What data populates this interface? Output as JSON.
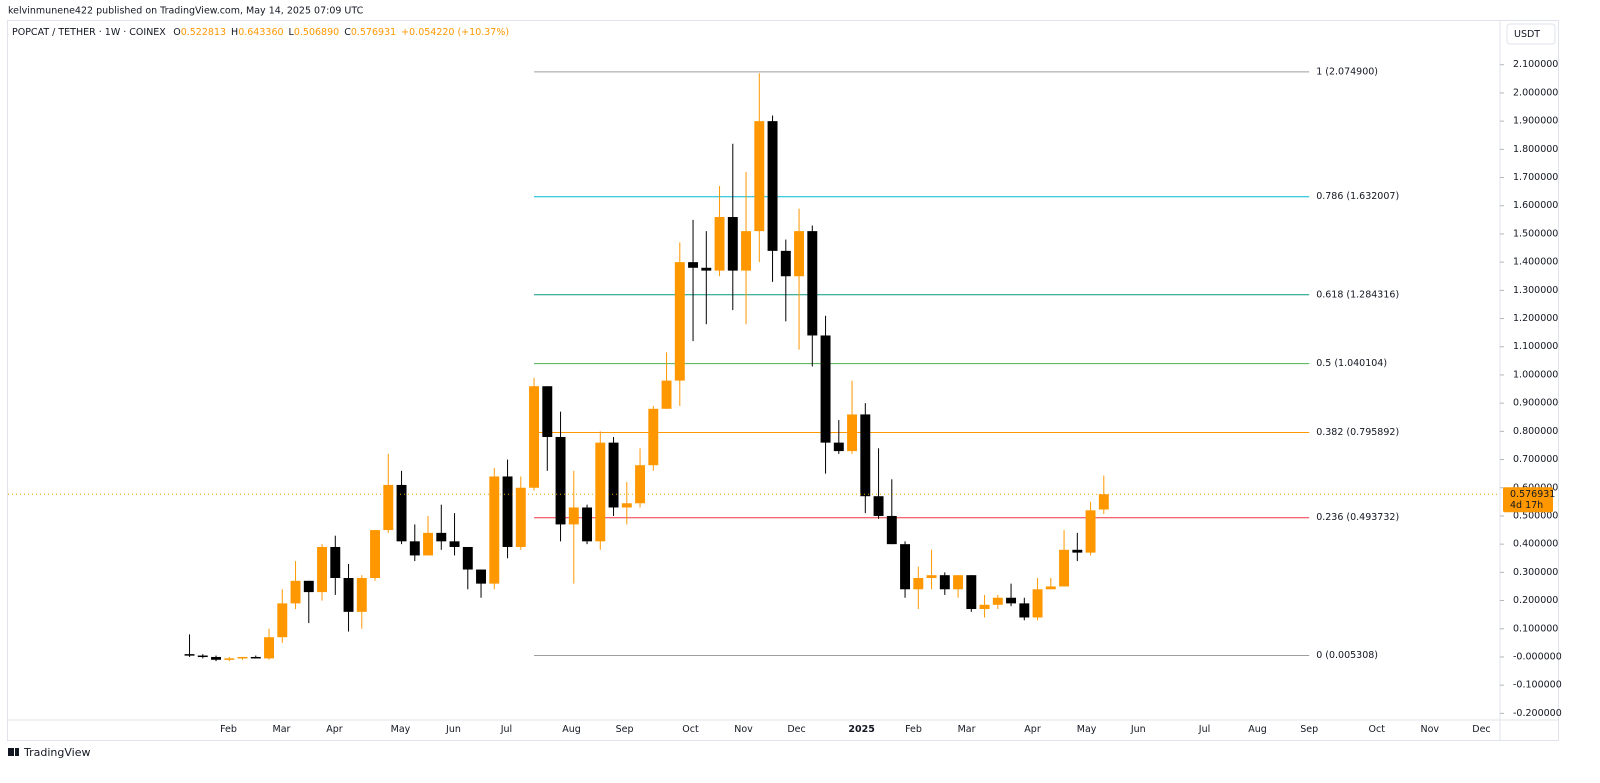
{
  "header": {
    "publisher": "kelvinmunene422 published on TradingView.com, May 14, 2025 07:09 UTC",
    "logo": "TradingView"
  },
  "chart_data": {
    "type": "candlestick",
    "title": "POPCAT / TETHER · 1W · COINEX",
    "ohlc_legend": [
      {
        "key": "O",
        "text": "0.522813"
      },
      {
        "key": "H",
        "text": "0.643360"
      },
      {
        "key": "L",
        "text": "0.506890"
      },
      {
        "key": "C",
        "text": "0.576931"
      }
    ],
    "change": "+0.054220 (+10.37%)",
    "currency": "USDT",
    "up_color": "#ff9800",
    "down_color": "#000000",
    "x": [
      0,
      1,
      2,
      3,
      4,
      5,
      6,
      7,
      8,
      9,
      10,
      11,
      12,
      13,
      14,
      15,
      16,
      17,
      18,
      19,
      20,
      21,
      22,
      23,
      24,
      25,
      26,
      27,
      28,
      29,
      30,
      31,
      32,
      33,
      34,
      35,
      36,
      37,
      38,
      39,
      40,
      41,
      42,
      43,
      44,
      45,
      46,
      47,
      48,
      49,
      50,
      51,
      52,
      53,
      54,
      55,
      56,
      57,
      58,
      59,
      60,
      61,
      62,
      63,
      64,
      65,
      66,
      67,
      68,
      69
    ],
    "open": [
      0.01,
      0.005,
      0.0,
      -0.01,
      -0.005,
      0.0,
      -0.005,
      0.07,
      0.19,
      0.27,
      0.23,
      0.39,
      0.28,
      0.16,
      0.28,
      0.45,
      0.61,
      0.41,
      0.36,
      0.44,
      0.41,
      0.39,
      0.31,
      0.26,
      0.64,
      0.39,
      0.6,
      0.96,
      0.78,
      0.47,
      0.53,
      0.41,
      0.76,
      0.53,
      0.545,
      0.68,
      0.88,
      0.98,
      1.4,
      1.38,
      1.37,
      1.56,
      1.37,
      1.51,
      1.9,
      1.44,
      1.35,
      1.51,
      1.14,
      0.76,
      0.73,
      0.86,
      0.57,
      0.5,
      0.4,
      0.24,
      0.28,
      0.29,
      0.24,
      0.29,
      0.17,
      0.185,
      0.21,
      0.19,
      0.14,
      0.24,
      0.25,
      0.38,
      0.37,
      0.522813
    ],
    "high": [
      0.08,
      0.01,
      0.005,
      0.0,
      0.0,
      0.005,
      0.1,
      0.24,
      0.34,
      0.27,
      0.4,
      0.43,
      0.33,
      0.29,
      0.45,
      0.72,
      0.66,
      0.47,
      0.5,
      0.54,
      0.51,
      0.39,
      0.31,
      0.67,
      0.7,
      0.64,
      0.99,
      0.96,
      0.87,
      0.66,
      0.54,
      0.8,
      0.78,
      0.62,
      0.74,
      0.89,
      1.08,
      1.47,
      1.55,
      1.51,
      1.67,
      1.82,
      1.72,
      2.07,
      1.92,
      1.48,
      1.59,
      1.53,
      1.21,
      0.84,
      0.98,
      0.9,
      0.74,
      0.63,
      0.41,
      0.32,
      0.38,
      0.3,
      0.29,
      0.29,
      0.22,
      0.22,
      0.26,
      0.21,
      0.28,
      0.28,
      0.45,
      0.44,
      0.55,
      0.64336
    ],
    "low": [
      0.0,
      -0.005,
      -0.015,
      -0.015,
      -0.01,
      -0.005,
      -0.01,
      0.05,
      0.17,
      0.12,
      0.2,
      0.22,
      0.09,
      0.1,
      0.27,
      0.44,
      0.4,
      0.34,
      0.36,
      0.38,
      0.36,
      0.24,
      0.21,
      0.24,
      0.35,
      0.38,
      0.59,
      0.66,
      0.41,
      0.26,
      0.4,
      0.38,
      0.5,
      0.47,
      0.53,
      0.66,
      0.88,
      0.89,
      1.12,
      1.18,
      1.35,
      1.23,
      1.18,
      1.4,
      1.33,
      1.19,
      1.09,
      1.03,
      0.65,
      0.72,
      0.72,
      0.51,
      0.49,
      0.4,
      0.21,
      0.17,
      0.24,
      0.22,
      0.21,
      0.16,
      0.14,
      0.17,
      0.18,
      0.13,
      0.13,
      0.24,
      0.25,
      0.34,
      0.36,
      0.50689
    ],
    "close": [
      0.005,
      0.0,
      -0.01,
      -0.005,
      0.0,
      -0.005,
      0.07,
      0.19,
      0.27,
      0.23,
      0.39,
      0.28,
      0.16,
      0.28,
      0.45,
      0.61,
      0.41,
      0.36,
      0.44,
      0.41,
      0.39,
      0.31,
      0.26,
      0.64,
      0.39,
      0.6,
      0.96,
      0.78,
      0.47,
      0.53,
      0.41,
      0.76,
      0.53,
      0.545,
      0.68,
      0.88,
      0.98,
      1.4,
      1.38,
      1.37,
      1.56,
      1.37,
      1.51,
      1.9,
      1.44,
      1.35,
      1.51,
      1.14,
      0.76,
      0.73,
      0.86,
      0.57,
      0.5,
      0.4,
      0.24,
      0.28,
      0.29,
      0.24,
      0.29,
      0.17,
      0.185,
      0.21,
      0.19,
      0.14,
      0.24,
      0.25,
      0.38,
      0.37,
      0.52,
      0.576931
    ],
    "last_price": {
      "value": 0.576931,
      "label": "0.576931"
    },
    "countdown": "4d 17h",
    "fib_x": [
      26,
      84.5
    ],
    "fib_levels": [
      {
        "value": 2.0749,
        "label": "1 (2.074900)",
        "color": "#9e9e9e"
      },
      {
        "value": 1.632007,
        "label": "0.786 (1.632007)",
        "color": "#00bcd4"
      },
      {
        "value": 1.284316,
        "label": "0.618 (1.284316)",
        "color": "#089981"
      },
      {
        "value": 1.040104,
        "label": "0.5 (1.040104)",
        "color": "#4caf50"
      },
      {
        "value": 0.795892,
        "label": "0.382 (0.795892)",
        "color": "#ff9800"
      },
      {
        "value": 0.493732,
        "label": "0.236 (0.493732)",
        "color": "#f23645"
      },
      {
        "value": 0.005308,
        "label": "0 (0.005308)",
        "color": "#9e9e9e"
      }
    ],
    "xlim": [
      -13.7,
      98.9
    ],
    "ylim": [
      -0.22,
      2.17
    ],
    "xticks": [
      {
        "value": 2.94,
        "label": "Feb"
      },
      {
        "value": 6.94,
        "label": "Mar"
      },
      {
        "value": 10.94,
        "label": "Apr"
      },
      {
        "value": 15.92,
        "label": "May"
      },
      {
        "value": 19.92,
        "label": "Jun"
      },
      {
        "value": 23.92,
        "label": "Jul"
      },
      {
        "value": 28.83,
        "label": "Aug"
      },
      {
        "value": 32.83,
        "label": "Sep"
      },
      {
        "value": 37.81,
        "label": "Oct"
      },
      {
        "value": 41.81,
        "label": "Nov"
      },
      {
        "value": 45.81,
        "label": "Dec"
      },
      {
        "value": 50.72,
        "label": "2025"
      },
      {
        "value": 54.64,
        "label": "Feb"
      },
      {
        "value": 58.64,
        "label": "Mar"
      },
      {
        "value": 63.62,
        "label": "Apr"
      },
      {
        "value": 67.7,
        "label": "May"
      },
      {
        "value": 71.6,
        "label": "Jun"
      },
      {
        "value": 76.6,
        "label": "Jul"
      },
      {
        "value": 80.6,
        "label": "Aug"
      },
      {
        "value": 84.5,
        "label": "Sep"
      },
      {
        "value": 89.6,
        "label": "Oct"
      },
      {
        "value": 93.6,
        "label": "Nov"
      },
      {
        "value": 97.5,
        "label": "Dec"
      }
    ],
    "yticks": [
      {
        "value": 2.1,
        "label": "2.100000"
      },
      {
        "value": 2.0,
        "label": "2.000000"
      },
      {
        "value": 1.9,
        "label": "1.900000"
      },
      {
        "value": 1.8,
        "label": "1.800000"
      },
      {
        "value": 1.7,
        "label": "1.700000"
      },
      {
        "value": 1.6,
        "label": "1.600000"
      },
      {
        "value": 1.5,
        "label": "1.500000"
      },
      {
        "value": 1.4,
        "label": "1.400000"
      },
      {
        "value": 1.3,
        "label": "1.300000"
      },
      {
        "value": 1.2,
        "label": "1.200000"
      },
      {
        "value": 1.1,
        "label": "1.100000"
      },
      {
        "value": 1.0,
        "label": "1.000000"
      },
      {
        "value": 0.9,
        "label": "0.900000"
      },
      {
        "value": 0.8,
        "label": "0.800000"
      },
      {
        "value": 0.7,
        "label": "0.700000"
      },
      {
        "value": 0.6,
        "label": "0.600000"
      },
      {
        "value": 0.5,
        "label": "0.500000"
      },
      {
        "value": 0.4,
        "label": "0.400000"
      },
      {
        "value": 0.3,
        "label": "0.300000"
      },
      {
        "value": 0.2,
        "label": "0.200000"
      },
      {
        "value": 0.1,
        "label": "0.100000"
      },
      {
        "value": 0,
        "label": "-0.000000"
      },
      {
        "value": -0.1,
        "label": "-0.100000"
      },
      {
        "value": -0.2,
        "label": "-0.200000"
      }
    ]
  }
}
